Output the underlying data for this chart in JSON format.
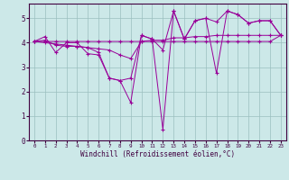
{
  "title": "",
  "xlabel": "Windchill (Refroidissement éolien,°C)",
  "background_color": "#cce8e8",
  "line_color": "#990099",
  "grid_color": "#9bbfbf",
  "xlim": [
    -0.5,
    23.5
  ],
  "ylim": [
    0,
    5.6
  ],
  "xticks": [
    0,
    1,
    2,
    3,
    4,
    5,
    6,
    7,
    8,
    9,
    10,
    11,
    12,
    13,
    14,
    15,
    16,
    17,
    18,
    19,
    20,
    21,
    22,
    23
  ],
  "yticks": [
    0,
    1,
    2,
    3,
    4,
    5
  ],
  "series": [
    [
      4.05,
      4.25,
      3.6,
      4.0,
      4.0,
      3.55,
      3.5,
      2.55,
      2.45,
      2.55,
      4.3,
      4.15,
      3.7,
      5.3,
      4.15,
      4.9,
      5.0,
      4.85,
      5.3,
      5.15,
      4.8,
      4.9,
      4.9,
      4.3
    ],
    [
      4.05,
      4.1,
      3.9,
      3.85,
      3.85,
      3.8,
      3.75,
      3.7,
      3.5,
      3.35,
      4.05,
      4.1,
      4.1,
      4.2,
      4.2,
      4.25,
      4.25,
      4.3,
      4.3,
      4.3,
      4.3,
      4.3,
      4.3,
      4.3
    ],
    [
      4.05,
      4.05,
      4.05,
      4.05,
      4.05,
      4.05,
      4.05,
      4.05,
      4.05,
      4.05,
      4.05,
      4.05,
      4.05,
      4.05,
      4.05,
      4.05,
      4.05,
      4.05,
      4.05,
      4.05,
      4.05,
      4.05,
      4.05,
      4.3
    ],
    [
      4.05,
      4.0,
      3.95,
      3.9,
      3.85,
      3.8,
      3.6,
      2.55,
      2.45,
      1.55,
      4.3,
      4.15,
      0.45,
      5.3,
      4.15,
      4.9,
      5.0,
      2.75,
      5.3,
      5.15,
      4.8,
      4.9,
      4.9,
      4.3
    ]
  ],
  "spine_color": "#400040",
  "tick_color": "#400040",
  "label_color": "#400040"
}
